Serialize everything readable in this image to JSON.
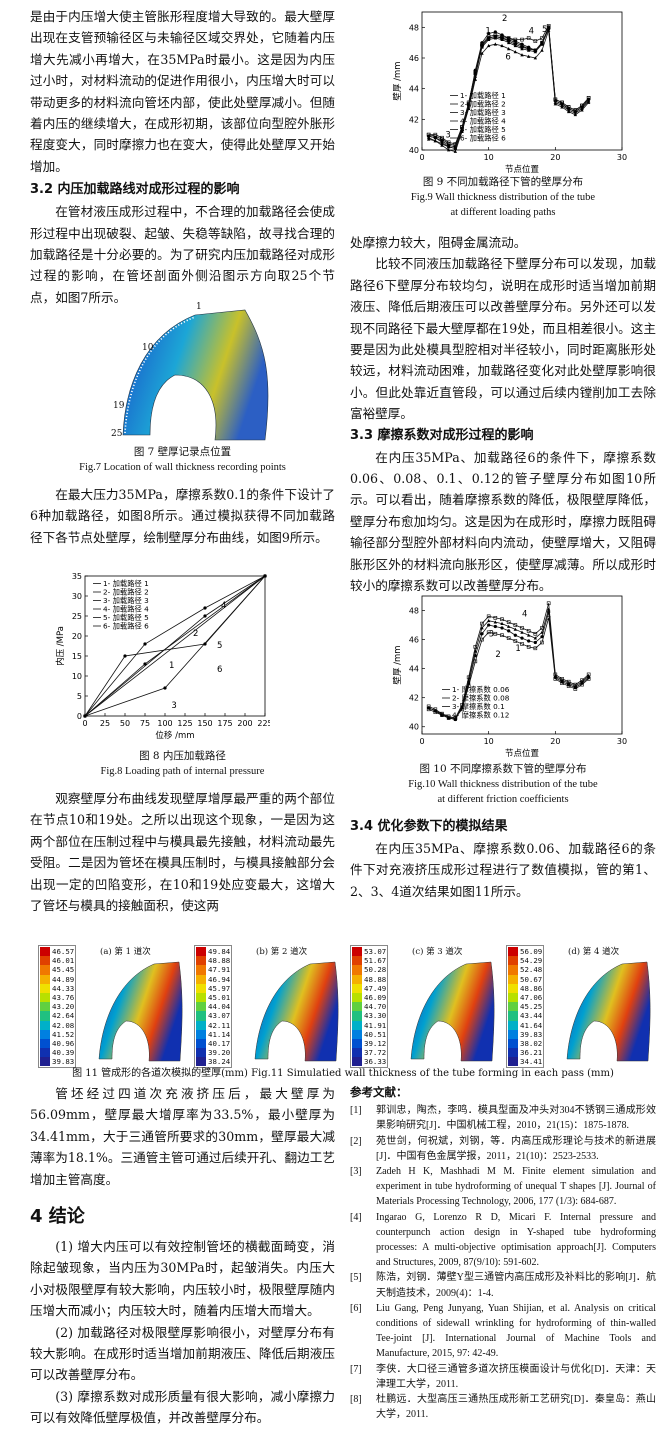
{
  "left_col": {
    "p1": "是由于内压增大使主管胀形程度增大导致的。最大壁厚出现在支管预输径区与未输径区域交界处，它随着内压增大先减小再增大，在35MPa时最小。这是因为内压过小时，对材料流动的促进作用很小，内压增大时可以带动更多的材料流向管坯内部，使此处壁厚减小。但随着内压的继续增大，在成形初期，该部位向型腔外胀形程度变大，同时摩擦力也在变大，使得此处壁厚又开始增加。",
    "sec32": "3.2  内压加载路线对成形过程的影响",
    "p2": "在管材液压成形过程中，不合理的加载路径会使成形过程中出现破裂、起皱、失稳等缺陷，故寻找合理的加载路径是十分必要的。为了研究内压加载路径对成形过程的影响，在管坯剖面外侧沿图示方向取25个节点，如图7所示。",
    "fig7_cn": "图 7  壁厚记录点位置",
    "fig7_en": "Fig.7  Location of wall thickness recording points",
    "p3": "在最大压力35MPa，摩擦系数0.1的条件下设计了6种加载路径，如图8所示。通过模拟获得不同加载路径下各节点处壁厚，绘制壁厚分布曲线，如图9所示。",
    "fig8_cn": "图 8  内压加载路径",
    "fig8_en": "Fig.8  Loading path of internal pressure",
    "p4": "观察壁厚分布曲线发现壁厚增厚最严重的两个部位在节点10和19处。之所以出现这个现象，一是因为这两个部位在压制过程中与模具最先接触，材料流动最先受阻。二是因为管坯在模具压制时，与模具接触部分会出现一定的凹陷变形，在10和19处应变最大，这增大了管坯与模具的接触面积，使这两"
  },
  "right_col": {
    "fig9_cn": "图 9  不同加载路径下管的壁厚分布",
    "fig9_en1": "Fig.9  Wall thickness distribution of the tube",
    "fig9_en2": "at different loading paths",
    "p1": "处摩擦力较大，阻碍金属流动。",
    "p2": "比较不同液压加载路径下壁厚分布可以发现，加载路径6下壁厚分布较均匀，说明在成形时适当增加前期液压、降低后期液压可以改善壁厚分布。另外还可以发现不同路径下最大壁厚都在19处，而且相差很小。这主要是因为此处模具型腔相对半径较小，同时距离胀形处较远，材料流动困难，加载路径变化对此处壁厚影响很小。但此处靠近直管段，可以通过后续内镗削加工去除富裕壁厚。",
    "sec33": "3.3  摩擦系数对成形过程的影响",
    "p3": "在内压35MPa、加载路径6的条件下，摩擦系数0.06、0.08、0.1、0.12的管子壁厚分布如图10所示。可以看出，随着摩擦系数的降低，极限壁厚降低，壁厚分布愈加均匀。这是因为在成形时，摩擦力既阻碍输径部分型腔外部材料向内流动，使壁厚增大，又阻碍胀形区外的材料流向胀形区，使壁厚减薄。所以成形时较小的摩擦系数可以改善壁厚分布。",
    "fig10_cn": "图 10  不同摩擦系数下管的壁厚分布",
    "fig10_en1": "Fig.10  Wall thickness distribution of the tube",
    "fig10_en2": "at different friction coefficients",
    "sec34": "3.4  优化参数下的模拟结果",
    "p4": "在内压35MPa、摩擦系数0.06、加载路径6的条件下对充液挤压成形过程进行了数值模拟，管的第1、2、3、4道次结果如图11所示。"
  },
  "fig11": {
    "caption": "图 11   管成形的各道次模拟的壁厚(mm)      Fig.11  Simulatied wall thickness of the tube forming in each pass (mm)",
    "panels": [
      {
        "tag": "(a) 第 1 道次",
        "scale": [
          "46.57",
          "46.01",
          "45.45",
          "44.89",
          "44.33",
          "43.76",
          "43.20",
          "42.64",
          "42.08",
          "41.52",
          "40.96",
          "40.39",
          "39.83"
        ]
      },
      {
        "tag": "(b) 第 2 道次",
        "scale": [
          "49.84",
          "48.88",
          "47.91",
          "46.94",
          "45.97",
          "45.01",
          "44.04",
          "43.07",
          "42.11",
          "41.14",
          "40.17",
          "39.20",
          "38.24"
        ]
      },
      {
        "tag": "(c) 第 3 道次",
        "scale": [
          "53.07",
          "51.67",
          "50.28",
          "48.88",
          "47.49",
          "46.09",
          "44.70",
          "43.30",
          "41.91",
          "40.51",
          "39.12",
          "37.72",
          "36.33"
        ]
      },
      {
        "tag": "(d) 第 4 道次",
        "scale": [
          "56.09",
          "54.29",
          "52.48",
          "50.67",
          "48.86",
          "47.06",
          "45.25",
          "43.44",
          "41.64",
          "39.83",
          "38.02",
          "36.21",
          "34.41"
        ]
      }
    ]
  },
  "bottom_left": {
    "p1": "管坯经过四道次充液挤压后，最大壁厚为56.09mm，壁厚最大增厚率为33.5%，最小壁厚为34.41mm，大于三通管所要求的30mm，壁厚最大减薄率为18.1%。三通管主管可通过后续开孔、翻边工艺增加主管高度。",
    "sec4": "4   结论",
    "c1": "(1) 增大内压可以有效控制管坯的横截面畸变，消除起皱现象，当内压为30MPa时，起皱消失。内压大小对极限壁厚有较大影响，内压较小时，极限壁厚随内压增大而减小；内压较大时，随着内压增大而增大。",
    "c2": "(2) 加载路径对极限壁厚影响很小，对壁厚分布有较大影响。在成形时适当增加前期液压、降低后期液压可以改善壁厚分布。",
    "c3": "(3) 摩擦系数对成形质量有很大影响，减小摩擦力可以有效降低壁厚极值，并改善壁厚分布。"
  },
  "refs": {
    "title": "参考文献：",
    "items": [
      {
        "n": "[1]",
        "t": "郭训忠，陶杰，李鸣．模具型面及冲头对304不锈钢三通成形效果影响研究[J]．中国机械工程，2010，21(15)：1875-1878."
      },
      {
        "n": "[2]",
        "t": "苑世剑，何祝斌，刘钢，等．内高压成形理论与技术的新进展[J]．中国有色金属学报，2011，21(10)：2523-2533."
      },
      {
        "n": "[3]",
        "t": "Zadeh H K, Mashhadi M M. Finite element simulation and experiment in tube hydroforming of unequal T shapes [J]. Journal of Materials Processing Technology, 2006, 177 (1/3): 684-687."
      },
      {
        "n": "[4]",
        "t": "Ingarao G, Lorenzo R D, Micari F. Internal pressure and counterpunch action design in Y-shaped tube hydroforming processes: A multi-objective optimisation approach[J]. Computers and Structures, 2009, 87(9/10): 591-602."
      },
      {
        "n": "[5]",
        "t": "陈浩，刘钢．薄壁Y型三通管内高压成形及补料比的影响[J]．航天制造技术，2009(4)：1-4."
      },
      {
        "n": "[6]",
        "t": "Liu Gang, Peng Junyang, Yuan Shijian, et al. Analysis on critical conditions of sidewall wrinkling for hydroforming of thin-walled Tee-joint [J]. International Journal of Machine Tools and Manufacture, 2015, 97: 42-49."
      },
      {
        "n": "[7]",
        "t": "李侠．大口径三通管多道次挤压模面设计与优化[D]．天津：天津理工大学，2011."
      },
      {
        "n": "[8]",
        "t": "杜鹏远．大型高压三通热压成形新工艺研究[D]．秦皇岛：燕山大学，2011."
      }
    ]
  },
  "fig7": {
    "labels": [
      "1",
      "10",
      "19",
      "25"
    ]
  },
  "fig8": {
    "xlabel": "位移 /mm",
    "ylabel": "内压 /MPa",
    "xticks": [
      "0",
      "25",
      "50",
      "75",
      "100",
      "125",
      "150",
      "175",
      "200",
      "225"
    ],
    "yticks": [
      "0",
      "5",
      "10",
      "15",
      "20",
      "25",
      "30",
      "35"
    ],
    "legend": [
      "1- 加载路径 1",
      "2- 加载路径 2",
      "3- 加载路径 3",
      "4- 加载路径 4",
      "5- 加载路径 5",
      "6- 加载路径 6"
    ],
    "curve_labels": [
      "1",
      "2",
      "3",
      "4",
      "5",
      "6"
    ]
  },
  "fig9": {
    "xlabel": "节点位置",
    "ylabel": "壁厚 /mm",
    "xticks": [
      "0",
      "10",
      "20",
      "30"
    ],
    "yticks": [
      "40",
      "42",
      "44",
      "46",
      "48"
    ],
    "legend": [
      "1- 加载路径 1",
      "2- 加载路径 2",
      "3- 加载路径 3",
      "4- 加载路径 4",
      "5- 加载路径 5",
      "6- 加载路径 6"
    ],
    "curve_labels": [
      "1",
      "2",
      "3",
      "4",
      "5",
      "6"
    ]
  },
  "fig10": {
    "xlabel": "节点位置",
    "ylabel": "壁厚 /mm",
    "xticks": [
      "0",
      "10",
      "20",
      "30"
    ],
    "yticks": [
      "40",
      "42",
      "44",
      "46",
      "48"
    ],
    "legend": [
      "1- 摩擦系数 0.06",
      "2- 摩擦系数 0.08",
      "3- 摩擦系数 0.1",
      "4- 摩擦系数 0.12"
    ],
    "curve_labels": [
      "1",
      "2",
      "3",
      "4"
    ]
  },
  "chart_data": [
    {
      "type": "line",
      "xlabel": "位移 /mm",
      "ylabel": "内压 /MPa",
      "xlim": [
        0,
        225
      ],
      "ylim": [
        0,
        35
      ],
      "series": [
        {
          "name": "加载路径 1",
          "x": [
            0,
            225
          ],
          "y": [
            0,
            35
          ]
        },
        {
          "name": "加载路径 2",
          "x": [
            0,
            150,
            225
          ],
          "y": [
            0,
            25,
            35
          ]
        },
        {
          "name": "加载路径 3",
          "x": [
            0,
            100,
            225
          ],
          "y": [
            0,
            7,
            35
          ]
        },
        {
          "name": "加载路径 4",
          "x": [
            0,
            75,
            150,
            225
          ],
          "y": [
            0,
            18,
            27,
            35
          ]
        },
        {
          "name": "加载路径 5",
          "x": [
            0,
            75,
            225
          ],
          "y": [
            0,
            13,
            35
          ]
        },
        {
          "name": "加载路径 6",
          "x": [
            0,
            50,
            150,
            225
          ],
          "y": [
            0,
            15,
            18,
            35
          ]
        }
      ]
    },
    {
      "type": "line",
      "xlabel": "节点位置",
      "ylabel": "壁厚 /mm",
      "xlim": [
        0,
        30
      ],
      "ylim": [
        40,
        49
      ],
      "series": [
        {
          "name": "加载路径 1",
          "x": [
            1,
            2,
            3,
            4,
            5,
            6,
            7,
            8,
            9,
            10,
            11,
            12,
            13,
            14,
            15,
            16,
            17,
            18,
            19,
            20,
            21,
            22,
            23,
            24,
            25
          ],
          "y": [
            41,
            41,
            40.8,
            40.5,
            40.4,
            41.5,
            43,
            45,
            46.8,
            47.3,
            47.4,
            47.3,
            47.2,
            47,
            46.8,
            46.6,
            46.5,
            47,
            48,
            43.3,
            43.1,
            42.8,
            42.6,
            42.9,
            43.4
          ]
        },
        {
          "name": "加载路径 2",
          "x": [
            1,
            2,
            3,
            4,
            5,
            6,
            7,
            8,
            9,
            10,
            11,
            12,
            13,
            14,
            15,
            16,
            17,
            18,
            19,
            20,
            21,
            22,
            23,
            24,
            25
          ],
          "y": [
            40.9,
            40.8,
            40.6,
            40.3,
            40.2,
            41.4,
            43,
            45.2,
            47,
            47.6,
            47.7,
            47.5,
            47.3,
            47.1,
            46.9,
            46.7,
            46.5,
            47,
            48,
            43.2,
            43,
            42.7,
            42.5,
            42.8,
            43.3
          ]
        },
        {
          "name": "加载路径 3",
          "x": [
            1,
            2,
            3,
            4,
            5,
            6,
            7,
            8,
            9,
            10,
            11,
            12,
            13,
            14,
            15,
            16,
            17,
            18,
            19,
            20,
            21,
            22,
            23,
            24,
            25
          ],
          "y": [
            40.8,
            40.6,
            40.3,
            40,
            39.9,
            41.2,
            42.8,
            44.8,
            46.7,
            47.2,
            47.3,
            47.2,
            47,
            46.8,
            46.6,
            46.5,
            46.4,
            46.9,
            48,
            43.1,
            42.9,
            42.6,
            42.4,
            42.7,
            43.2
          ]
        },
        {
          "name": "加载路径 4",
          "x": [
            1,
            2,
            3,
            4,
            5,
            6,
            7,
            8,
            9,
            10,
            11,
            12,
            13,
            14,
            15,
            16,
            17,
            18,
            19,
            20,
            21,
            22,
            23,
            24,
            25
          ],
          "y": [
            41,
            40.9,
            40.7,
            40.4,
            40.3,
            41.5,
            43.1,
            45.1,
            46.9,
            47.4,
            47.5,
            47.4,
            47.3,
            47.2,
            47.2,
            47.3,
            47.1,
            47.3,
            48.1,
            43.3,
            43.1,
            42.8,
            42.6,
            42.9,
            43.4
          ]
        },
        {
          "name": "加载路径 5",
          "x": [
            1,
            2,
            3,
            4,
            5,
            6,
            7,
            8,
            9,
            10,
            11,
            12,
            13,
            14,
            15,
            16,
            17,
            18,
            19,
            20,
            21,
            22,
            23,
            24,
            25
          ],
          "y": [
            40.9,
            40.8,
            40.5,
            40.2,
            40.1,
            41.3,
            42.9,
            45,
            46.8,
            47.3,
            47.4,
            47.3,
            47.1,
            46.9,
            46.7,
            46.6,
            46.5,
            46.9,
            47.9,
            43.2,
            43,
            42.7,
            42.5,
            42.8,
            43.3
          ]
        },
        {
          "name": "加载路径 6",
          "x": [
            1,
            2,
            3,
            4,
            5,
            6,
            7,
            8,
            9,
            10,
            11,
            12,
            13,
            14,
            15,
            16,
            17,
            18,
            19,
            20,
            21,
            22,
            23,
            24,
            25
          ],
          "y": [
            40.7,
            40.6,
            40.4,
            40.2,
            40.1,
            41.2,
            42.7,
            44.6,
            46.3,
            46.8,
            46.9,
            46.8,
            46.6,
            46.4,
            46.2,
            46.1,
            46,
            46.5,
            47.8,
            43,
            42.8,
            42.5,
            42.3,
            42.6,
            43.1
          ]
        }
      ]
    },
    {
      "type": "line",
      "xlabel": "节点位置",
      "ylabel": "壁厚 /mm",
      "xlim": [
        0,
        30
      ],
      "ylim": [
        39.5,
        49
      ],
      "series": [
        {
          "name": "摩擦系数 0.06",
          "x": [
            1,
            2,
            3,
            4,
            5,
            6,
            7,
            8,
            9,
            10,
            11,
            12,
            13,
            14,
            15,
            16,
            17,
            18,
            19,
            20,
            21,
            22,
            23,
            24,
            25
          ],
          "y": [
            41.2,
            41,
            40.8,
            40.6,
            40.6,
            41.2,
            42.8,
            44.5,
            46,
            46.5,
            46.4,
            46.3,
            46.1,
            45.9,
            45.7,
            45.5,
            45.4,
            45.8,
            47.5,
            43.3,
            43,
            42.8,
            42.6,
            42.9,
            43.3
          ]
        },
        {
          "name": "摩擦系数 0.08",
          "x": [
            1,
            2,
            3,
            4,
            5,
            6,
            7,
            8,
            9,
            10,
            11,
            12,
            13,
            14,
            15,
            16,
            17,
            18,
            19,
            20,
            21,
            22,
            23,
            24,
            25
          ],
          "y": [
            41.3,
            41.1,
            40.8,
            40.6,
            40.5,
            41.3,
            43,
            44.9,
            46.4,
            47,
            46.9,
            46.8,
            46.6,
            46.3,
            46.1,
            45.9,
            45.8,
            46.2,
            47.9,
            43.4,
            43.1,
            42.9,
            42.7,
            43,
            43.4
          ]
        },
        {
          "name": "摩擦系数 0.1",
          "x": [
            1,
            2,
            3,
            4,
            5,
            6,
            7,
            8,
            9,
            10,
            11,
            12,
            13,
            14,
            15,
            16,
            17,
            18,
            19,
            20,
            21,
            22,
            23,
            24,
            25
          ],
          "y": [
            41.3,
            41.1,
            40.9,
            40.6,
            40.5,
            41.4,
            43.2,
            45.2,
            46.8,
            47.3,
            47.2,
            47.1,
            46.9,
            46.7,
            46.5,
            46.3,
            46.1,
            46.5,
            48.1,
            43.5,
            43.2,
            43,
            42.8,
            43.1,
            43.5
          ]
        },
        {
          "name": "摩擦系数 0.12",
          "x": [
            1,
            2,
            3,
            4,
            5,
            6,
            7,
            8,
            9,
            10,
            11,
            12,
            13,
            14,
            15,
            16,
            17,
            18,
            19,
            20,
            21,
            22,
            23,
            24,
            25
          ],
          "y": [
            41.4,
            41.2,
            40.9,
            40.7,
            40.6,
            41.5,
            43.4,
            45.5,
            47.1,
            47.6,
            47.5,
            47.4,
            47.2,
            47,
            46.8,
            46.6,
            46.4,
            46.8,
            48.5,
            43.6,
            43.3,
            43.1,
            42.9,
            43.2,
            43.6
          ]
        }
      ]
    }
  ]
}
